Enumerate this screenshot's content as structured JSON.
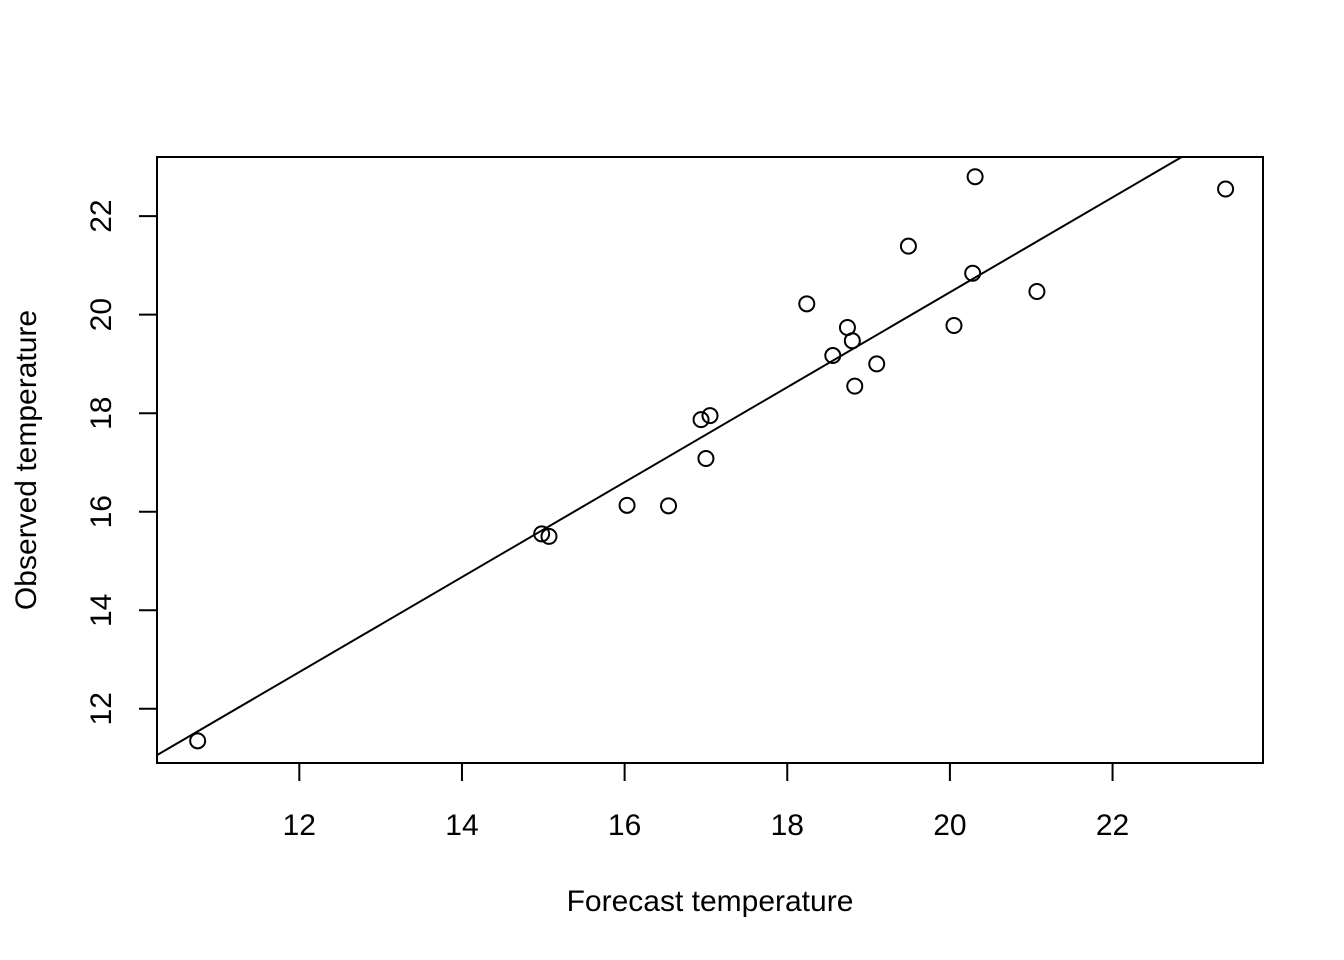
{
  "chart_data": {
    "type": "scatter",
    "title": "",
    "xlabel": "Forecast temperature",
    "ylabel": "Observed temperature",
    "xlim": [
      10.25,
      23.85
    ],
    "ylim": [
      10.9,
      23.2
    ],
    "x_ticks": [
      12,
      14,
      16,
      18,
      20,
      22
    ],
    "y_ticks": [
      12,
      14,
      16,
      18,
      20,
      22
    ],
    "x_tick_labels": [
      "12",
      "14",
      "16",
      "18",
      "20",
      "22"
    ],
    "y_tick_labels": [
      "12",
      "14",
      "16",
      "18",
      "20",
      "22"
    ],
    "grid": false,
    "legend": "none",
    "marker": "open-circle",
    "color": "#000000",
    "points": [
      {
        "x": 10.75,
        "y": 11.35
      },
      {
        "x": 14.98,
        "y": 15.55
      },
      {
        "x": 15.07,
        "y": 15.5
      },
      {
        "x": 16.03,
        "y": 16.13
      },
      {
        "x": 16.54,
        "y": 16.12
      },
      {
        "x": 16.94,
        "y": 17.87
      },
      {
        "x": 17.05,
        "y": 17.95
      },
      {
        "x": 17.0,
        "y": 17.08
      },
      {
        "x": 18.24,
        "y": 20.22
      },
      {
        "x": 18.56,
        "y": 19.17
      },
      {
        "x": 18.74,
        "y": 19.74
      },
      {
        "x": 18.8,
        "y": 19.47
      },
      {
        "x": 18.83,
        "y": 18.55
      },
      {
        "x": 19.1,
        "y": 19.0
      },
      {
        "x": 19.49,
        "y": 21.39
      },
      {
        "x": 20.05,
        "y": 19.78
      },
      {
        "x": 20.28,
        "y": 20.84
      },
      {
        "x": 20.31,
        "y": 22.8
      },
      {
        "x": 21.07,
        "y": 20.47
      },
      {
        "x": 23.39,
        "y": 22.55
      }
    ],
    "fit_line": {
      "type": "linear",
      "x": [
        10.25,
        22.85
      ],
      "y": [
        11.06,
        23.2
      ]
    }
  }
}
